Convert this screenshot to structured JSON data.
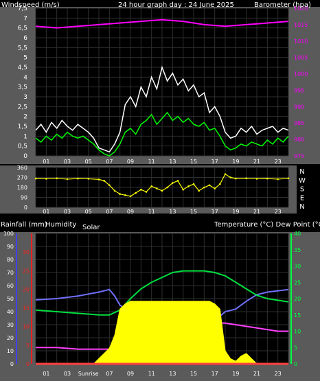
{
  "colors": {
    "background": "#000000",
    "panel": "#5a5a5a",
    "grid": "#2e2e2e",
    "windspeed": "#ffffff",
    "wind_gust": "#00ff00",
    "barometer": "#ff00ff",
    "direction": "#ffff00",
    "temperature": "#00e040",
    "dew_point": "#ff40ff",
    "humidity": "#7070ff",
    "solar": "#ffff00",
    "rainfall": "#ff4040",
    "text": "#ffffff",
    "axis_red": "#ff2020",
    "axis_blue": "#4040ff",
    "axis_green": "#00ff40"
  },
  "chart_data": [
    {
      "type": "line",
      "title": "24 hour graph day : 24 June 2025",
      "ylabel": "Windspeed (m/s)",
      "ylabel_right": "Barometer (hpa)",
      "ylim": [
        0,
        7.5
      ],
      "y_ticks": [
        "0",
        "0,5",
        "1",
        "1,5",
        "2",
        "2,5",
        "3",
        "3,5",
        "4",
        "4,5",
        "5",
        "5,5",
        "6",
        "6,5",
        "7",
        "7,5"
      ],
      "y2lim": [
        975,
        1020
      ],
      "y2_ticks": [
        "975",
        "980",
        "985",
        "990",
        "995",
        "1000",
        "1005",
        "1010",
        "1015",
        "1020"
      ],
      "x_ticks": [
        "01",
        "03",
        "05",
        "07",
        "09",
        "11",
        "13",
        "15",
        "17",
        "19",
        "21",
        "23"
      ],
      "xlim": [
        0,
        24
      ],
      "series": [
        {
          "key": "windspeed",
          "axis": "left",
          "x": [
            0,
            0.5,
            1,
            1.5,
            2,
            2.5,
            3,
            3.5,
            4,
            4.5,
            5,
            5.5,
            6,
            6.5,
            7,
            7.5,
            8,
            8.5,
            9,
            9.5,
            10,
            10.5,
            11,
            11.5,
            12,
            12.5,
            13,
            13.5,
            14,
            14.5,
            15,
            15.5,
            16,
            16.5,
            17,
            17.5,
            18,
            18.5,
            19,
            19.5,
            20,
            20.5,
            21,
            21.5,
            22,
            22.5,
            23,
            23.5,
            24
          ],
          "values": [
            1.3,
            1.6,
            1.2,
            1.7,
            1.4,
            1.8,
            1.5,
            1.3,
            1.6,
            1.4,
            1.2,
            0.9,
            0.4,
            0.3,
            0.2,
            0.6,
            1.2,
            2.6,
            3.0,
            2.5,
            3.5,
            3.0,
            4.0,
            3.4,
            4.5,
            3.8,
            4.2,
            3.6,
            3.9,
            3.3,
            3.6,
            3.0,
            3.2,
            2.2,
            2.5,
            2.0,
            1.2,
            0.9,
            1.0,
            1.4,
            1.2,
            1.5,
            1.1,
            1.3,
            1.4,
            1.5,
            1.2,
            1.4,
            1.3
          ]
        },
        {
          "key": "wind_gust",
          "axis": "left",
          "x": [
            0,
            0.5,
            1,
            1.5,
            2,
            2.5,
            3,
            3.5,
            4,
            4.5,
            5,
            5.5,
            6,
            6.5,
            7,
            7.5,
            8,
            8.5,
            9,
            9.5,
            10,
            10.5,
            11,
            11.5,
            12,
            12.5,
            13,
            13.5,
            14,
            14.5,
            15,
            15.5,
            16,
            16.5,
            17,
            17.5,
            18,
            18.5,
            19,
            19.5,
            20,
            20.5,
            21,
            21.5,
            22,
            22.5,
            23,
            23.5,
            24
          ],
          "values": [
            0.9,
            0.7,
            1.0,
            0.8,
            1.1,
            0.9,
            1.2,
            1.0,
            0.9,
            1.0,
            0.8,
            0.6,
            0.3,
            0.1,
            0.0,
            0.2,
            0.6,
            1.2,
            1.4,
            1.1,
            1.6,
            1.8,
            2.1,
            1.6,
            1.9,
            2.2,
            1.8,
            2.0,
            1.7,
            1.9,
            1.6,
            1.5,
            1.7,
            1.3,
            1.4,
            1.0,
            0.5,
            0.3,
            0.4,
            0.6,
            0.5,
            0.7,
            0.6,
            0.5,
            0.8,
            0.6,
            0.9,
            0.7,
            1.0
          ]
        },
        {
          "key": "barometer",
          "axis": "right",
          "x": [
            0,
            2,
            4,
            6,
            8,
            10,
            12,
            14,
            16,
            18,
            20,
            22,
            24
          ],
          "values": [
            1014.5,
            1014.0,
            1014.5,
            1015.0,
            1015.5,
            1016.0,
            1016.5,
            1016.0,
            1015.0,
            1014.5,
            1015.0,
            1015.5,
            1016.0
          ]
        }
      ]
    },
    {
      "type": "scatter",
      "ylabel": "Wind direction",
      "ylim": [
        0,
        360
      ],
      "y_ticks": [
        "0",
        "90",
        "180",
        "270",
        "360"
      ],
      "y_right_labels": [
        "N",
        "W",
        "S",
        "E",
        "N"
      ],
      "x_ticks": [
        "01",
        "03",
        "05",
        "07",
        "09",
        "11",
        "13",
        "15",
        "17",
        "19",
        "21",
        "23"
      ],
      "xlim": [
        0,
        24
      ],
      "series": [
        {
          "key": "direction",
          "x": [
            0,
            1,
            2,
            3,
            4,
            5,
            6,
            6.5,
            7,
            7.5,
            8,
            8.5,
            9,
            9.5,
            10,
            10.5,
            11,
            11.5,
            12,
            12.5,
            13,
            13.5,
            14,
            14.5,
            15,
            15.5,
            16,
            16.5,
            17,
            17.5,
            18,
            18.5,
            19,
            20,
            21,
            22,
            23,
            24
          ],
          "values": [
            260,
            258,
            262,
            255,
            260,
            258,
            252,
            240,
            200,
            150,
            120,
            110,
            100,
            130,
            160,
            140,
            190,
            170,
            150,
            180,
            220,
            240,
            160,
            190,
            210,
            150,
            180,
            200,
            170,
            210,
            300,
            270,
            260,
            262,
            258,
            260,
            255,
            262
          ]
        }
      ]
    },
    {
      "type": "line",
      "ylabel_left_red": "Rainfall (mm)",
      "ylabel_left_blue": "Humidity",
      "label_solar": "Solar",
      "ylabel_right": "Temperature (°C) Dew Point (°C)",
      "humidity_ticks": [
        "0",
        "10",
        "20",
        "30",
        "40",
        "50",
        "60",
        "70",
        "80",
        "90",
        "100"
      ],
      "rain_ticks": [
        "0",
        "5",
        "10",
        "15",
        "20",
        "25",
        "30"
      ],
      "temp_ticks": [
        "0",
        "5",
        "10",
        "15",
        "20",
        "25",
        "30",
        "35",
        "40"
      ],
      "x_ticks": [
        "01",
        "03",
        "Sunrise",
        "07",
        "09",
        "11",
        "13",
        "15",
        "17",
        "19",
        "21",
        "23"
      ],
      "xlim": [
        0,
        24
      ],
      "humidity_lim": [
        0,
        100
      ],
      "temp_lim": [
        0,
        40
      ],
      "series": [
        {
          "key": "humidity",
          "axis": "humidity",
          "x": [
            0,
            2,
            4,
            6,
            7,
            7.5,
            8,
            9,
            10,
            11,
            12,
            13,
            14,
            15,
            16,
            17,
            18,
            19,
            20,
            21,
            22,
            23,
            24
          ],
          "values": [
            49,
            50,
            52,
            55,
            57,
            52,
            45,
            40,
            38,
            38,
            36,
            35,
            35,
            34,
            34,
            33,
            40,
            42,
            48,
            53,
            55,
            56,
            57
          ]
        },
        {
          "key": "temperature",
          "axis": "temp",
          "x": [
            0,
            2,
            4,
            6,
            7,
            8,
            9,
            10,
            11,
            12,
            13,
            14,
            15,
            16,
            17,
            18,
            19,
            20,
            21,
            22,
            23,
            24
          ],
          "values": [
            16.5,
            16,
            15.5,
            15,
            15,
            16.5,
            20,
            23,
            25,
            26.5,
            28,
            28.5,
            28.5,
            28.5,
            28,
            27,
            25,
            23,
            21,
            20,
            19.5,
            19
          ]
        },
        {
          "key": "dew_point",
          "axis": "temp",
          "x": [
            0,
            2,
            4,
            6,
            7,
            8,
            9,
            10,
            11,
            12,
            13,
            14,
            15,
            16,
            17,
            18,
            19,
            20,
            21,
            22,
            23,
            24
          ],
          "values": [
            5,
            5,
            4.5,
            4.5,
            4.5,
            8,
            11,
            12,
            13,
            13.5,
            14,
            13.5,
            13,
            13,
            12.5,
            12.5,
            12,
            11.5,
            11,
            10.5,
            10,
            10
          ]
        },
        {
          "key": "solar",
          "axis": "humidity",
          "x": [
            0,
            5.5,
            6,
            6.5,
            7,
            7.5,
            8,
            8.5,
            9,
            10,
            11,
            12,
            13,
            14,
            15,
            16,
            16.5,
            17,
            17.5,
            18,
            18.5,
            19,
            19.5,
            20,
            20.5,
            21,
            24
          ],
          "values": [
            0,
            0,
            4,
            8,
            12,
            22,
            42,
            46,
            48,
            48,
            48,
            48,
            48,
            48,
            48,
            48,
            48,
            46,
            42,
            10,
            4,
            2,
            6,
            8,
            4,
            0,
            0
          ]
        },
        {
          "key": "rainfall",
          "axis": "rain",
          "x": [
            0,
            24
          ],
          "values": [
            0,
            0
          ]
        }
      ]
    }
  ]
}
